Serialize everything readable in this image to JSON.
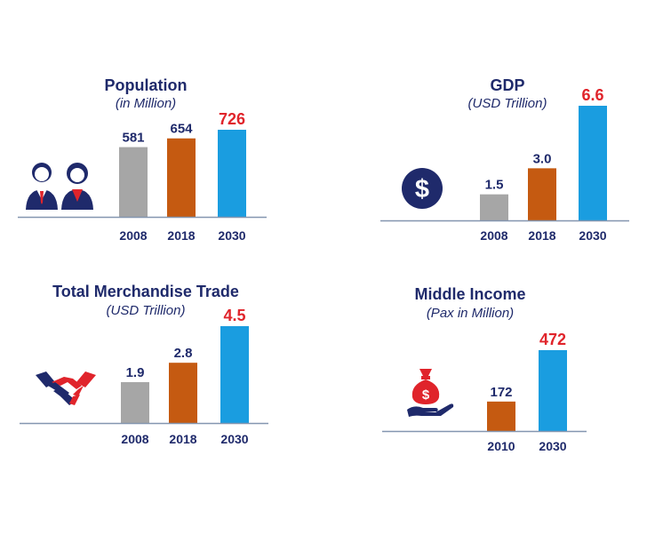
{
  "colors": {
    "navy": "#1f2a6b",
    "highlight": "#e0242b",
    "gray": "#a6a6a6",
    "orange": "#c55a11",
    "blue": "#1a9de0",
    "baseline": "#8496b0"
  },
  "chart_data": [
    {
      "type": "bar",
      "title": "Population",
      "subtitle": "(in Million)",
      "icon": "people-icon",
      "categories": [
        "2008",
        "2018",
        "2030"
      ],
      "values": [
        581,
        654,
        726
      ],
      "value_labels": [
        "581",
        "654",
        "726"
      ],
      "bar_colors": [
        "gray",
        "orange",
        "blue"
      ],
      "highlight_last": true
    },
    {
      "type": "bar",
      "title": "GDP",
      "subtitle": "(USD Trillion)",
      "icon": "dollar-coin-icon",
      "categories": [
        "2008",
        "2018",
        "2030"
      ],
      "values": [
        1.5,
        3.0,
        6.6
      ],
      "value_labels": [
        "1.5",
        "3.0",
        "6.6"
      ],
      "bar_colors": [
        "gray",
        "orange",
        "blue"
      ],
      "highlight_last": true
    },
    {
      "type": "bar",
      "title": "Total Merchandise Trade",
      "subtitle": "(USD Trillion)",
      "icon": "handshake-icon",
      "categories": [
        "2008",
        "2018",
        "2030"
      ],
      "values": [
        1.9,
        2.8,
        4.5
      ],
      "value_labels": [
        "1.9",
        "2.8",
        "4.5"
      ],
      "bar_colors": [
        "gray",
        "orange",
        "blue"
      ],
      "highlight_last": true
    },
    {
      "type": "bar",
      "title": "Middle Income",
      "subtitle": "(Pax in Million)",
      "icon": "money-bag-hand-icon",
      "categories": [
        "2010",
        "2030"
      ],
      "values": [
        172,
        472
      ],
      "value_labels": [
        "172",
        "472"
      ],
      "bar_colors": [
        "orange",
        "blue"
      ],
      "highlight_last": true
    }
  ]
}
